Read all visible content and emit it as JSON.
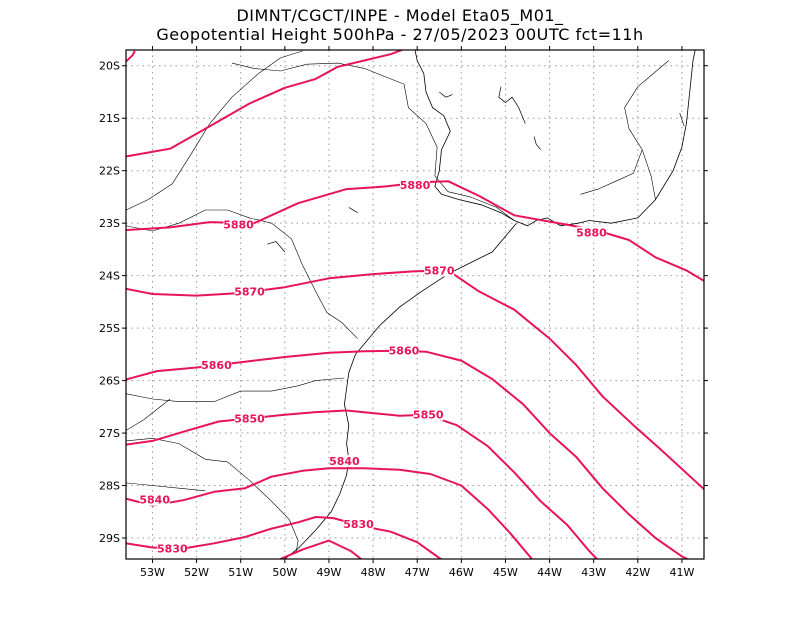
{
  "header": {
    "line1": "DIMNT/CGCT/INPE  -   Model Eta05_M01_",
    "line2": "Geopotential Height 500hPa  -   27/05/2023 00UTC fct=11h"
  },
  "colors": {
    "contour": "#e8135a",
    "coast": "#000000",
    "grid": "#999999",
    "frame": "#000000"
  },
  "map": {
    "lon_range": [
      -53.6,
      -40.5
    ],
    "lat_range": [
      -29.4,
      -19.7
    ],
    "lon_ticks": [
      {
        "v": -53,
        "label": "53W"
      },
      {
        "v": -52,
        "label": "52W"
      },
      {
        "v": -51,
        "label": "51W"
      },
      {
        "v": -50,
        "label": "50W"
      },
      {
        "v": -49,
        "label": "49W"
      },
      {
        "v": -48,
        "label": "48W"
      },
      {
        "v": -47,
        "label": "47W"
      },
      {
        "v": -46,
        "label": "46W"
      },
      {
        "v": -45,
        "label": "45W"
      },
      {
        "v": -44,
        "label": "44W"
      },
      {
        "v": -43,
        "label": "43W"
      },
      {
        "v": -42,
        "label": "42W"
      },
      {
        "v": -41,
        "label": "41W"
      }
    ],
    "lat_ticks": [
      {
        "v": -20,
        "label": "20S"
      },
      {
        "v": -21,
        "label": "21S"
      },
      {
        "v": -22,
        "label": "22S"
      },
      {
        "v": -23,
        "label": "23S"
      },
      {
        "v": -24,
        "label": "24S"
      },
      {
        "v": -25,
        "label": "25S"
      },
      {
        "v": -26,
        "label": "26S"
      },
      {
        "v": -27,
        "label": "27S"
      },
      {
        "v": -28,
        "label": "28S"
      },
      {
        "v": -29,
        "label": "29S"
      }
    ],
    "contours": [
      {
        "level": "5890",
        "points": [
          [
            -53.6,
            -21.73
          ],
          [
            -52.6,
            -21.58
          ],
          [
            -51.8,
            -21.2
          ],
          [
            -50.8,
            -20.72
          ],
          [
            -50.0,
            -20.42
          ],
          [
            -49.3,
            -20.25
          ],
          [
            -48.8,
            -20.02
          ],
          [
            -48.2,
            -19.9
          ],
          [
            -47.6,
            -19.78
          ],
          [
            -47.1,
            -19.62
          ]
        ],
        "labels": []
      },
      {
        "level": "5890",
        "points": [
          [
            -53.6,
            -19.92
          ],
          [
            -53.45,
            -19.8
          ],
          [
            -53.4,
            -19.72
          ]
        ],
        "labels": []
      },
      {
        "level": "5880",
        "points": [
          [
            -53.6,
            -23.13
          ],
          [
            -52.6,
            -23.08
          ],
          [
            -51.7,
            -22.98
          ],
          [
            -50.7,
            -23.0
          ],
          [
            -49.7,
            -22.62
          ],
          [
            -48.6,
            -22.35
          ],
          [
            -47.7,
            -22.3
          ],
          [
            -46.9,
            -22.22
          ],
          [
            -46.3,
            -22.2
          ],
          [
            -45.6,
            -22.48
          ],
          [
            -44.8,
            -22.85
          ],
          [
            -44.0,
            -22.97
          ],
          [
            -43.0,
            -23.12
          ],
          [
            -42.2,
            -23.32
          ],
          [
            -41.6,
            -23.65
          ],
          [
            -40.9,
            -23.9
          ],
          [
            -40.5,
            -24.1
          ]
        ],
        "labels": [
          {
            "lon": -51.05,
            "lat": -23.03
          },
          {
            "lon": -47.05,
            "lat": -22.27
          },
          {
            "lon": -43.05,
            "lat": -23.18
          }
        ]
      },
      {
        "level": "5870",
        "points": [
          [
            -53.6,
            -24.25
          ],
          [
            -53.0,
            -24.35
          ],
          [
            -52.0,
            -24.38
          ],
          [
            -51.0,
            -24.33
          ],
          [
            -50.0,
            -24.22
          ],
          [
            -49.0,
            -24.05
          ],
          [
            -48.0,
            -23.97
          ],
          [
            -47.1,
            -23.92
          ],
          [
            -46.3,
            -23.9
          ],
          [
            -45.6,
            -24.3
          ],
          [
            -44.8,
            -24.65
          ],
          [
            -44.0,
            -25.2
          ],
          [
            -43.4,
            -25.7
          ],
          [
            -42.8,
            -26.3
          ],
          [
            -42.1,
            -26.85
          ],
          [
            -41.5,
            -27.3
          ],
          [
            -40.5,
            -28.07
          ]
        ],
        "labels": [
          {
            "lon": -50.8,
            "lat": -24.3
          },
          {
            "lon": -46.5,
            "lat": -23.9
          }
        ]
      },
      {
        "level": "5860",
        "points": [
          [
            -53.6,
            -25.98
          ],
          [
            -52.9,
            -25.82
          ],
          [
            -52.0,
            -25.75
          ],
          [
            -51.0,
            -25.65
          ],
          [
            -50.0,
            -25.55
          ],
          [
            -49.0,
            -25.47
          ],
          [
            -48.2,
            -25.44
          ],
          [
            -47.3,
            -25.43
          ],
          [
            -46.8,
            -25.45
          ],
          [
            -46.0,
            -25.62
          ],
          [
            -45.3,
            -25.97
          ],
          [
            -44.6,
            -26.45
          ],
          [
            -44.0,
            -27.0
          ],
          [
            -43.4,
            -27.45
          ],
          [
            -42.8,
            -28.05
          ],
          [
            -42.2,
            -28.55
          ],
          [
            -41.6,
            -29.0
          ],
          [
            -41.0,
            -29.35
          ],
          [
            -40.5,
            -29.55
          ]
        ],
        "labels": [
          {
            "lon": -51.55,
            "lat": -25.7
          },
          {
            "lon": -47.3,
            "lat": -25.43
          }
        ]
      },
      {
        "level": "5850",
        "points": [
          [
            -53.6,
            -27.22
          ],
          [
            -53.0,
            -27.15
          ],
          [
            -52.2,
            -26.95
          ],
          [
            -51.5,
            -26.78
          ],
          [
            -50.8,
            -26.72
          ],
          [
            -50.0,
            -26.65
          ],
          [
            -49.3,
            -26.6
          ],
          [
            -48.6,
            -26.57
          ],
          [
            -48.0,
            -26.62
          ],
          [
            -47.4,
            -26.67
          ],
          [
            -46.8,
            -26.65
          ],
          [
            -46.1,
            -26.85
          ],
          [
            -45.4,
            -27.25
          ],
          [
            -44.8,
            -27.75
          ],
          [
            -44.2,
            -28.3
          ],
          [
            -43.6,
            -28.75
          ],
          [
            -43.1,
            -29.25
          ],
          [
            -42.7,
            -29.6
          ]
        ],
        "labels": [
          {
            "lon": -50.8,
            "lat": -26.72
          },
          {
            "lon": -46.75,
            "lat": -26.65
          }
        ]
      },
      {
        "level": "5840",
        "points": [
          [
            -53.6,
            -28.25
          ],
          [
            -53.0,
            -28.38
          ],
          [
            -52.3,
            -28.28
          ],
          [
            -51.6,
            -28.12
          ],
          [
            -50.9,
            -28.05
          ],
          [
            -50.3,
            -27.83
          ],
          [
            -49.6,
            -27.72
          ],
          [
            -49.0,
            -27.67
          ],
          [
            -48.2,
            -27.67
          ],
          [
            -47.4,
            -27.7
          ],
          [
            -46.7,
            -27.78
          ],
          [
            -46.0,
            -28.0
          ],
          [
            -45.4,
            -28.45
          ],
          [
            -44.9,
            -28.9
          ],
          [
            -44.4,
            -29.4
          ],
          [
            -44.0,
            -29.65
          ]
        ],
        "labels": [
          {
            "lon": -52.95,
            "lat": -28.27
          },
          {
            "lon": -48.65,
            "lat": -27.53
          }
        ]
      },
      {
        "level": "5830",
        "points": [
          [
            -53.6,
            -29.1
          ],
          [
            -53.0,
            -29.18
          ],
          [
            -52.3,
            -29.2
          ],
          [
            -51.6,
            -29.1
          ],
          [
            -50.9,
            -28.98
          ],
          [
            -50.3,
            -28.82
          ],
          [
            -49.7,
            -28.7
          ],
          [
            -49.3,
            -28.6
          ],
          [
            -48.9,
            -28.62
          ],
          [
            -48.2,
            -28.78
          ],
          [
            -47.6,
            -28.88
          ],
          [
            -47.0,
            -29.08
          ],
          [
            -46.5,
            -29.38
          ],
          [
            -46.1,
            -29.6
          ]
        ],
        "labels": [
          {
            "lon": -52.55,
            "lat": -29.2
          },
          {
            "lon": -48.33,
            "lat": -28.73
          }
        ]
      },
      {
        "level": "5830",
        "points": [
          [
            -50.1,
            -29.4
          ],
          [
            -49.6,
            -29.22
          ],
          [
            -49.0,
            -29.05
          ],
          [
            -48.5,
            -29.25
          ],
          [
            -48.2,
            -29.45
          ]
        ],
        "labels": []
      }
    ],
    "coastline": [
      [
        -47.05,
        -19.7
      ],
      [
        -47.0,
        -19.9
      ],
      [
        -46.85,
        -20.15
      ],
      [
        -46.8,
        -20.5
      ],
      [
        -46.65,
        -20.8
      ],
      [
        -46.4,
        -20.95
      ],
      [
        -46.25,
        -21.25
      ],
      [
        -46.45,
        -21.6
      ],
      [
        -46.5,
        -22.0
      ],
      [
        -46.6,
        -22.3
      ],
      [
        -46.45,
        -22.45
      ],
      [
        -46.05,
        -22.55
      ],
      [
        -45.55,
        -22.65
      ],
      [
        -45.1,
        -22.8
      ],
      [
        -44.8,
        -22.95
      ],
      [
        -44.5,
        -23.05
      ],
      [
        -44.3,
        -22.95
      ],
      [
        -44.05,
        -22.9
      ],
      [
        -43.75,
        -23.05
      ],
      [
        -43.35,
        -23.0
      ],
      [
        -43.1,
        -22.95
      ],
      [
        -42.6,
        -23.0
      ],
      [
        -42.0,
        -22.9
      ],
      [
        -41.6,
        -22.55
      ],
      [
        -41.2,
        -22.0
      ],
      [
        -41.0,
        -21.55
      ],
      [
        -40.9,
        -21.1
      ],
      [
        -40.85,
        -20.7
      ],
      [
        -40.8,
        -20.3
      ],
      [
        -40.75,
        -19.9
      ],
      [
        -40.7,
        -19.7
      ]
    ],
    "coast_sp": [
      [
        -44.75,
        -23.0
      ],
      [
        -45.3,
        -23.55
      ],
      [
        -45.9,
        -23.8
      ],
      [
        -46.3,
        -23.97
      ],
      [
        -46.9,
        -24.3
      ],
      [
        -47.4,
        -24.6
      ],
      [
        -47.85,
        -24.95
      ],
      [
        -48.2,
        -25.3
      ],
      [
        -48.4,
        -25.5
      ],
      [
        -48.55,
        -25.85
      ],
      [
        -48.6,
        -26.15
      ],
      [
        -48.65,
        -26.45
      ],
      [
        -48.55,
        -26.85
      ],
      [
        -48.6,
        -27.2
      ],
      [
        -48.55,
        -27.5
      ],
      [
        -48.6,
        -27.8
      ],
      [
        -48.75,
        -28.15
      ],
      [
        -48.95,
        -28.5
      ],
      [
        -49.3,
        -28.85
      ],
      [
        -49.7,
        -29.2
      ],
      [
        -50.0,
        -29.4
      ]
    ],
    "borders": [
      [
        [
          -53.6,
          -22.75
        ],
        [
          -53.1,
          -22.55
        ],
        [
          -52.55,
          -22.25
        ],
        [
          -52.1,
          -21.65
        ],
        [
          -51.7,
          -21.1
        ],
        [
          -51.2,
          -20.6
        ],
        [
          -50.6,
          -20.15
        ],
        [
          -50.1,
          -19.85
        ],
        [
          -49.6,
          -19.72
        ]
      ],
      [
        [
          -51.2,
          -19.95
        ],
        [
          -50.7,
          -20.05
        ],
        [
          -50.1,
          -20.1
        ],
        [
          -49.5,
          -19.97
        ],
        [
          -48.8,
          -19.95
        ],
        [
          -48.2,
          -20.05
        ],
        [
          -47.6,
          -20.25
        ],
        [
          -47.3,
          -20.35
        ]
      ],
      [
        [
          -47.3,
          -20.35
        ],
        [
          -47.2,
          -20.8
        ],
        [
          -46.8,
          -21.1
        ],
        [
          -46.55,
          -21.55
        ],
        [
          -46.6,
          -22.1
        ],
        [
          -46.3,
          -22.4
        ],
        [
          -45.8,
          -22.5
        ],
        [
          -45.2,
          -22.7
        ],
        [
          -44.8,
          -22.95
        ]
      ],
      [
        [
          -53.6,
          -23.05
        ],
        [
          -53.0,
          -23.15
        ],
        [
          -52.4,
          -23.0
        ],
        [
          -51.8,
          -22.75
        ],
        [
          -51.3,
          -22.75
        ],
        [
          -50.8,
          -22.9
        ],
        [
          -50.3,
          -23.0
        ],
        [
          -49.85,
          -23.3
        ],
        [
          -49.6,
          -23.8
        ],
        [
          -49.3,
          -24.3
        ],
        [
          -49.05,
          -24.7
        ],
        [
          -48.7,
          -24.9
        ],
        [
          -48.35,
          -25.2
        ]
      ],
      [
        [
          -53.6,
          -26.25
        ],
        [
          -53.0,
          -26.35
        ],
        [
          -52.4,
          -26.4
        ],
        [
          -51.6,
          -26.4
        ],
        [
          -51.0,
          -26.2
        ],
        [
          -50.3,
          -26.2
        ],
        [
          -49.7,
          -26.1
        ],
        [
          -49.3,
          -26.0
        ],
        [
          -48.65,
          -25.95
        ]
      ],
      [
        [
          -53.6,
          -27.15
        ],
        [
          -53.0,
          -27.1
        ],
        [
          -52.4,
          -27.2
        ],
        [
          -51.8,
          -27.5
        ],
        [
          -51.3,
          -27.55
        ],
        [
          -50.8,
          -27.9
        ],
        [
          -50.3,
          -28.3
        ],
        [
          -49.9,
          -28.65
        ],
        [
          -49.7,
          -29.05
        ],
        [
          -49.75,
          -29.3
        ]
      ],
      [
        [
          -53.6,
          -27.95
        ],
        [
          -53.0,
          -28.0
        ],
        [
          -52.4,
          -28.05
        ],
        [
          -51.8,
          -28.1
        ]
      ],
      [
        [
          -53.6,
          -26.95
        ],
        [
          -53.2,
          -26.75
        ],
        [
          -52.9,
          -26.55
        ],
        [
          -52.6,
          -26.35
        ]
      ],
      [
        [
          -41.6,
          -22.55
        ],
        [
          -41.7,
          -22.1
        ],
        [
          -41.9,
          -21.6
        ],
        [
          -42.2,
          -21.2
        ],
        [
          -42.3,
          -20.8
        ],
        [
          -42.0,
          -20.4
        ],
        [
          -41.65,
          -20.15
        ],
        [
          -41.3,
          -19.9
        ]
      ],
      [
        [
          -41.05,
          -20.9
        ],
        [
          -40.95,
          -21.15
        ]
      ],
      [
        [
          -43.3,
          -22.45
        ],
        [
          -42.9,
          -22.35
        ],
        [
          -42.5,
          -22.2
        ],
        [
          -42.1,
          -22.05
        ],
        [
          -41.9,
          -21.6
        ]
      ]
    ],
    "rivers": [
      [
        [
          -45.1,
          -20.4
        ],
        [
          -45.15,
          -20.6
        ],
        [
          -45.0,
          -20.7
        ],
        [
          -44.85,
          -20.6
        ],
        [
          -44.7,
          -20.8
        ],
        [
          -44.55,
          -21.1
        ]
      ],
      [
        [
          -44.35,
          -21.35
        ],
        [
          -44.3,
          -21.5
        ],
        [
          -44.2,
          -21.6
        ]
      ],
      [
        [
          -46.5,
          -20.5
        ],
        [
          -46.35,
          -20.6
        ],
        [
          -46.2,
          -20.55
        ]
      ],
      [
        [
          -50.4,
          -23.4
        ],
        [
          -50.2,
          -23.35
        ],
        [
          -50.0,
          -23.55
        ]
      ],
      [
        [
          -48.55,
          -22.7
        ],
        [
          -48.35,
          -22.8
        ]
      ]
    ]
  }
}
